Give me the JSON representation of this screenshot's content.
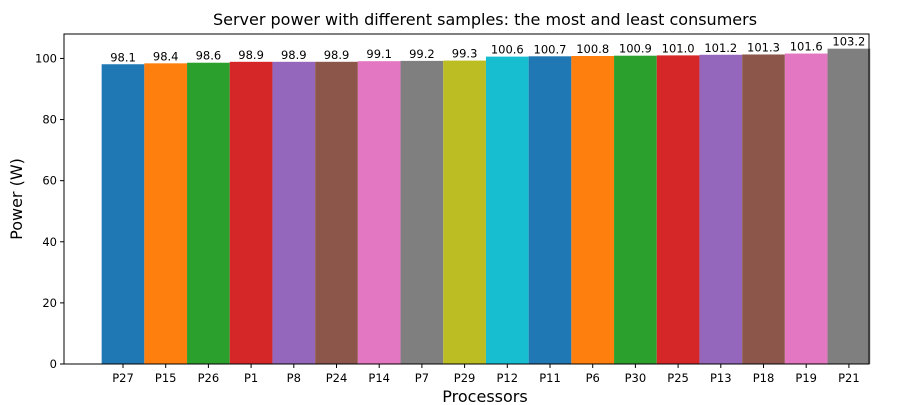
{
  "chart_data": {
    "type": "bar",
    "title": "Server power with different samples: the most and least consumers",
    "xlabel": "Processors",
    "ylabel": "Power (W)",
    "ylim": [
      0,
      108
    ],
    "yticks": [
      0,
      20,
      40,
      60,
      80,
      100
    ],
    "grid": false,
    "categories": [
      "P27",
      "P15",
      "P26",
      "P1",
      "P8",
      "P24",
      "P14",
      "P7",
      "P29",
      "P12",
      "P11",
      "P6",
      "P30",
      "P25",
      "P13",
      "P18",
      "P19",
      "P21"
    ],
    "values": [
      98.1,
      98.4,
      98.6,
      98.9,
      98.9,
      98.9,
      99.1,
      99.2,
      99.3,
      100.6,
      100.7,
      100.8,
      100.9,
      101.0,
      101.2,
      101.3,
      101.6,
      103.2
    ],
    "value_labels": [
      "98.1",
      "98.4",
      "98.6",
      "98.9",
      "98.9",
      "98.9",
      "99.1",
      "99.2",
      "99.3",
      "100.6",
      "100.7",
      "100.8",
      "100.9",
      "101.0",
      "101.2",
      "101.3",
      "101.6",
      "103.2"
    ],
    "colors": [
      "#1f77b4",
      "#ff7f0e",
      "#2ca02c",
      "#d62728",
      "#9467bd",
      "#8c564b",
      "#e377c2",
      "#7f7f7f",
      "#bcbd22",
      "#17becf",
      "#1f77b4",
      "#ff7f0e",
      "#2ca02c",
      "#d62728",
      "#9467bd",
      "#8c564b",
      "#e377c2",
      "#7f7f7f"
    ]
  }
}
